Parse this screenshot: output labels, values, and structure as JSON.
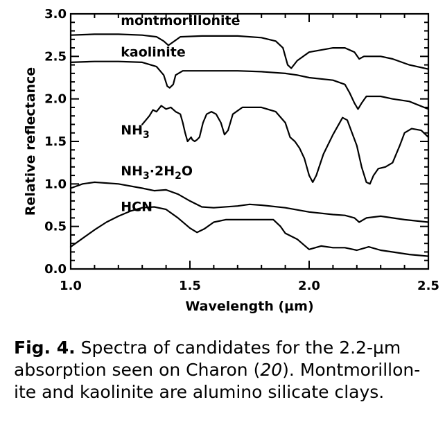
{
  "chart_data": {
    "type": "line",
    "title": "",
    "xlabel": "Wavelength (µm)",
    "ylabel": "Relative reflectance",
    "xlim": [
      1.0,
      2.5
    ],
    "ylim": [
      0.0,
      3.0
    ],
    "xticks": [
      "1.0",
      "1.5",
      "2.0",
      "2.5"
    ],
    "yticks": [
      "0.0",
      "0.5",
      "1.0",
      "1.5",
      "2.0",
      "2.5",
      "3.0"
    ],
    "grid": false,
    "legend": "inline labels beside curves",
    "series": [
      {
        "name": "montmorillonite",
        "label_pos": [
          1.21,
          2.87
        ],
        "points": [
          [
            1.0,
            2.75
          ],
          [
            1.1,
            2.76
          ],
          [
            1.2,
            2.76
          ],
          [
            1.3,
            2.75
          ],
          [
            1.36,
            2.73
          ],
          [
            1.39,
            2.68
          ],
          [
            1.41,
            2.63
          ],
          [
            1.43,
            2.67
          ],
          [
            1.46,
            2.73
          ],
          [
            1.55,
            2.74
          ],
          [
            1.7,
            2.74
          ],
          [
            1.8,
            2.72
          ],
          [
            1.86,
            2.68
          ],
          [
            1.89,
            2.6
          ],
          [
            1.91,
            2.4
          ],
          [
            1.925,
            2.36
          ],
          [
            1.95,
            2.45
          ],
          [
            2.0,
            2.55
          ],
          [
            2.1,
            2.6
          ],
          [
            2.15,
            2.6
          ],
          [
            2.19,
            2.55
          ],
          [
            2.21,
            2.47
          ],
          [
            2.23,
            2.5
          ],
          [
            2.3,
            2.5
          ],
          [
            2.35,
            2.47
          ],
          [
            2.42,
            2.4
          ],
          [
            2.5,
            2.35
          ]
        ]
      },
      {
        "name": "kaolinite",
        "label_pos": [
          1.21,
          2.5
        ],
        "points": [
          [
            1.0,
            2.43
          ],
          [
            1.1,
            2.44
          ],
          [
            1.2,
            2.44
          ],
          [
            1.3,
            2.43
          ],
          [
            1.36,
            2.38
          ],
          [
            1.39,
            2.28
          ],
          [
            1.405,
            2.15
          ],
          [
            1.415,
            2.13
          ],
          [
            1.43,
            2.17
          ],
          [
            1.44,
            2.28
          ],
          [
            1.47,
            2.33
          ],
          [
            1.6,
            2.33
          ],
          [
            1.7,
            2.33
          ],
          [
            1.8,
            2.32
          ],
          [
            1.9,
            2.3
          ],
          [
            1.95,
            2.28
          ],
          [
            2.0,
            2.25
          ],
          [
            2.1,
            2.22
          ],
          [
            2.15,
            2.17
          ],
          [
            2.17,
            2.07
          ],
          [
            2.19,
            1.95
          ],
          [
            2.205,
            1.88
          ],
          [
            2.22,
            1.95
          ],
          [
            2.24,
            2.03
          ],
          [
            2.3,
            2.03
          ],
          [
            2.35,
            2.0
          ],
          [
            2.42,
            1.97
          ],
          [
            2.5,
            1.88
          ]
        ]
      },
      {
        "name": "NH3",
        "label_text": "NH",
        "label_sub": "3",
        "label_pos": [
          1.21,
          1.58
        ],
        "points": [
          [
            1.3,
            1.7
          ],
          [
            1.315,
            1.75
          ],
          [
            1.33,
            1.8
          ],
          [
            1.345,
            1.87
          ],
          [
            1.36,
            1.85
          ],
          [
            1.38,
            1.92
          ],
          [
            1.4,
            1.88
          ],
          [
            1.42,
            1.9
          ],
          [
            1.44,
            1.85
          ],
          [
            1.46,
            1.82
          ],
          [
            1.47,
            1.72
          ],
          [
            1.48,
            1.6
          ],
          [
            1.49,
            1.5
          ],
          [
            1.505,
            1.55
          ],
          [
            1.51,
            1.52
          ],
          [
            1.52,
            1.5
          ],
          [
            1.53,
            1.52
          ],
          [
            1.54,
            1.55
          ],
          [
            1.555,
            1.72
          ],
          [
            1.57,
            1.82
          ],
          [
            1.59,
            1.85
          ],
          [
            1.61,
            1.82
          ],
          [
            1.63,
            1.72
          ],
          [
            1.645,
            1.58
          ],
          [
            1.66,
            1.63
          ],
          [
            1.68,
            1.82
          ],
          [
            1.72,
            1.9
          ],
          [
            1.8,
            1.9
          ],
          [
            1.86,
            1.85
          ],
          [
            1.9,
            1.72
          ],
          [
            1.92,
            1.55
          ],
          [
            1.94,
            1.5
          ],
          [
            1.96,
            1.42
          ],
          [
            1.98,
            1.3
          ],
          [
            2.0,
            1.1
          ],
          [
            2.015,
            1.02
          ],
          [
            2.03,
            1.1
          ],
          [
            2.06,
            1.35
          ],
          [
            2.1,
            1.58
          ],
          [
            2.14,
            1.78
          ],
          [
            2.16,
            1.75
          ],
          [
            2.18,
            1.6
          ],
          [
            2.2,
            1.45
          ],
          [
            2.22,
            1.2
          ],
          [
            2.24,
            1.02
          ],
          [
            2.255,
            1.0
          ],
          [
            2.27,
            1.1
          ],
          [
            2.29,
            1.18
          ],
          [
            2.32,
            1.2
          ],
          [
            2.35,
            1.25
          ],
          [
            2.38,
            1.45
          ],
          [
            2.4,
            1.6
          ],
          [
            2.43,
            1.65
          ],
          [
            2.47,
            1.63
          ],
          [
            2.5,
            1.55
          ]
        ]
      },
      {
        "name": "NH3·2H2O",
        "label_text": "NH",
        "label_sub": "3",
        "label_mid": "·2H",
        "label_sub2": "2",
        "label_end": "O",
        "label_pos": [
          1.21,
          1.1
        ],
        "points": [
          [
            1.0,
            0.95
          ],
          [
            1.05,
            1.0
          ],
          [
            1.1,
            1.02
          ],
          [
            1.2,
            1.0
          ],
          [
            1.3,
            0.95
          ],
          [
            1.35,
            0.92
          ],
          [
            1.4,
            0.93
          ],
          [
            1.45,
            0.88
          ],
          [
            1.5,
            0.8
          ],
          [
            1.55,
            0.73
          ],
          [
            1.6,
            0.72
          ],
          [
            1.7,
            0.74
          ],
          [
            1.75,
            0.76
          ],
          [
            1.8,
            0.75
          ],
          [
            1.9,
            0.72
          ],
          [
            2.0,
            0.67
          ],
          [
            2.1,
            0.64
          ],
          [
            2.15,
            0.63
          ],
          [
            2.19,
            0.6
          ],
          [
            2.21,
            0.55
          ],
          [
            2.24,
            0.6
          ],
          [
            2.3,
            0.62
          ],
          [
            2.4,
            0.58
          ],
          [
            2.5,
            0.55
          ]
        ]
      },
      {
        "name": "HCN",
        "label_pos": [
          1.21,
          0.68
        ],
        "points": [
          [
            1.0,
            0.26
          ],
          [
            1.05,
            0.36
          ],
          [
            1.1,
            0.46
          ],
          [
            1.15,
            0.55
          ],
          [
            1.2,
            0.62
          ],
          [
            1.25,
            0.68
          ],
          [
            1.3,
            0.72
          ],
          [
            1.35,
            0.73
          ],
          [
            1.4,
            0.7
          ],
          [
            1.45,
            0.6
          ],
          [
            1.5,
            0.48
          ],
          [
            1.53,
            0.43
          ],
          [
            1.56,
            0.47
          ],
          [
            1.6,
            0.55
          ],
          [
            1.65,
            0.58
          ],
          [
            1.7,
            0.58
          ],
          [
            1.8,
            0.58
          ],
          [
            1.85,
            0.58
          ],
          [
            1.88,
            0.5
          ],
          [
            1.9,
            0.42
          ],
          [
            1.95,
            0.35
          ],
          [
            2.0,
            0.23
          ],
          [
            2.05,
            0.27
          ],
          [
            2.1,
            0.25
          ],
          [
            2.15,
            0.25
          ],
          [
            2.2,
            0.22
          ],
          [
            2.25,
            0.26
          ],
          [
            2.3,
            0.22
          ],
          [
            2.35,
            0.2
          ],
          [
            2.42,
            0.17
          ],
          [
            2.5,
            0.15
          ]
        ]
      }
    ]
  },
  "caption": {
    "figure_label": "Fig. 4.",
    "text_before_ref": " Spectra of candidates for the 2.2-µm absorption seen on Charon (",
    "reference": "20",
    "text_after_ref": "). Montmorillon-ite and kaolinite are alumino silicate clays."
  }
}
